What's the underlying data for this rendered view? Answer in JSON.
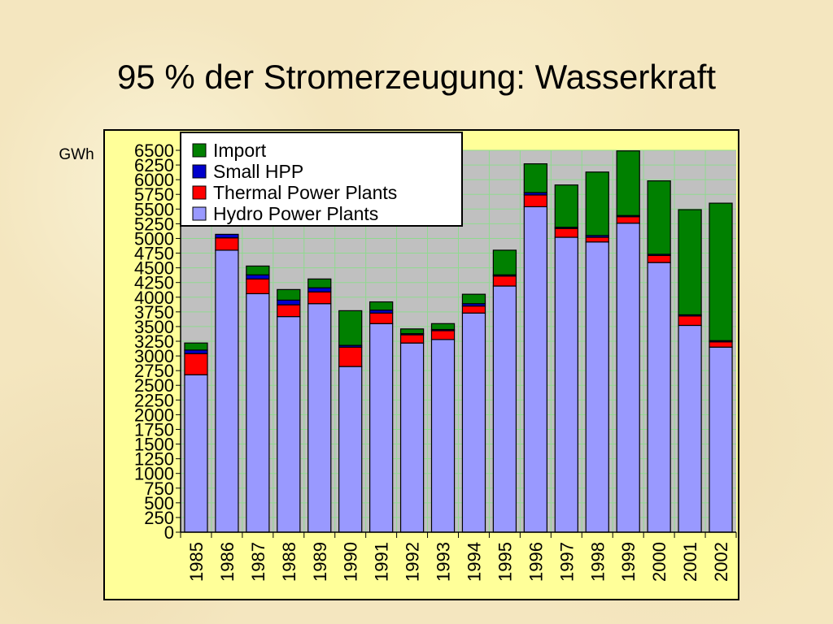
{
  "slide": {
    "title": "95 % der Stromerzeugung: Wasserkraft"
  },
  "chart_data": {
    "type": "bar",
    "stacked": true,
    "ylabel": "GWh",
    "ylim": [
      0,
      6500
    ],
    "ytick_step": 250,
    "grid": true,
    "legend_position": "top-left",
    "categories": [
      "1985",
      "1986",
      "1987",
      "1988",
      "1989",
      "1990",
      "1991",
      "1992",
      "1993",
      "1994",
      "1995",
      "1996",
      "1997",
      "1998",
      "1999",
      "2000",
      "2001",
      "2002"
    ],
    "series": [
      {
        "name": "Hydro Power Plants",
        "color": "#9999ff",
        "values": [
          2680,
          4800,
          4060,
          3670,
          3890,
          2820,
          3550,
          3220,
          3280,
          3730,
          4190,
          5540,
          5020,
          4940,
          5260,
          4590,
          3520,
          3150
        ]
      },
      {
        "name": "Thermal Power Plants",
        "color": "#ff0000",
        "values": [
          360,
          210,
          250,
          200,
          200,
          330,
          180,
          140,
          150,
          120,
          170,
          200,
          150,
          80,
          110,
          120,
          160,
          90
        ]
      },
      {
        "name": "Small HPP",
        "color": "#0000cc",
        "values": [
          60,
          60,
          70,
          80,
          70,
          30,
          50,
          20,
          20,
          40,
          20,
          40,
          20,
          30,
          20,
          20,
          20,
          20
        ]
      },
      {
        "name": "Import",
        "color": "#008000",
        "values": [
          120,
          0,
          150,
          180,
          150,
          590,
          140,
          80,
          100,
          160,
          420,
          490,
          720,
          1080,
          1100,
          1250,
          1790,
          2340
        ]
      }
    ],
    "legend_order": [
      "Import",
      "Small HPP",
      "Thermal Power Plants",
      "Hydro Power Plants"
    ],
    "colors": {
      "plot_background": "#c0c0c0",
      "chart_background": "#ffff99",
      "gridline": "#8fd98f"
    }
  }
}
